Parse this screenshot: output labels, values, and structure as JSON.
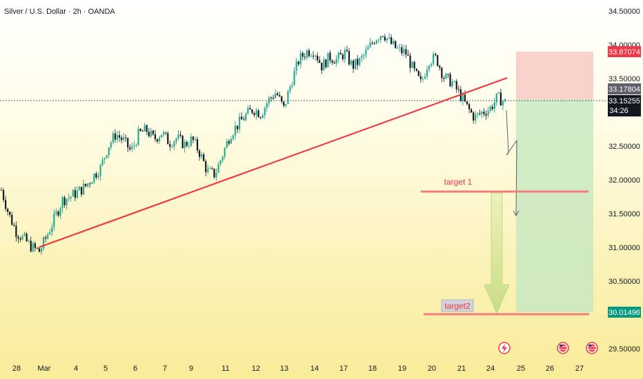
{
  "chart_data": {
    "type": "candlestick",
    "title": "Silver / U.S. Dollar · 2h · OANDA",
    "y_axis": {
      "ticks": [
        "34.50000",
        "34.00000",
        "33.50000",
        "33.00000",
        "32.50000",
        "32.00000",
        "31.50000",
        "31.00000",
        "30.50000",
        "30.00000",
        "29.50000"
      ],
      "range": [
        29.42,
        34.57
      ]
    },
    "x_axis": {
      "ticks": [
        "28",
        "Mar",
        "4",
        "5",
        "6",
        "7",
        "9",
        "11",
        "12",
        "13",
        "14",
        "17",
        "18",
        "19",
        "20",
        "21",
        "24",
        "25",
        "26",
        "27"
      ]
    },
    "price_tags": [
      {
        "value": "33.87074",
        "color": "#f23645"
      },
      {
        "value": "33.17804",
        "color": "#5d606b"
      },
      {
        "value": "33.15255",
        "color": "#131722"
      },
      {
        "value": "34:26",
        "color": "#131722"
      },
      {
        "value": "30.01496",
        "color": "#089981"
      }
    ],
    "current_price": 33.15255,
    "stop_level": 33.87074,
    "entry_level": 33.17804,
    "target_level": 30.01496,
    "annotations": [
      "target 1",
      "target2"
    ],
    "target1_level": 31.82,
    "target2_level": 30.0,
    "trendline": {
      "start": [
        "Feb 28",
        30.97
      ],
      "end": [
        "Mar 24",
        33.51
      ]
    },
    "price_path": [
      [
        0,
        31.85
      ],
      [
        1,
        31.48
      ],
      [
        2,
        31.22
      ],
      [
        3,
        31.12
      ],
      [
        4,
        31.0
      ],
      [
        5,
        30.94
      ],
      [
        6,
        31.18
      ],
      [
        7,
        31.44
      ],
      [
        8,
        31.7
      ],
      [
        9,
        31.75
      ],
      [
        10,
        31.82
      ],
      [
        11,
        31.9
      ],
      [
        12,
        32.05
      ],
      [
        13,
        32.18
      ],
      [
        14,
        32.5
      ],
      [
        15,
        32.68
      ],
      [
        16,
        32.58
      ],
      [
        17,
        32.42
      ],
      [
        18,
        32.68
      ],
      [
        19,
        32.74
      ],
      [
        20,
        32.6
      ],
      [
        21,
        32.7
      ],
      [
        22,
        32.55
      ],
      [
        23,
        32.62
      ],
      [
        24,
        32.52
      ],
      [
        25,
        32.6
      ],
      [
        26,
        32.4
      ],
      [
        27,
        32.12
      ],
      [
        28,
        32.08
      ],
      [
        29,
        32.38
      ],
      [
        30,
        32.68
      ],
      [
        31,
        32.82
      ],
      [
        32,
        32.95
      ],
      [
        33,
        33.05
      ],
      [
        34,
        32.98
      ],
      [
        35,
        33.18
      ],
      [
        36,
        33.3
      ],
      [
        37,
        33.05
      ],
      [
        38,
        33.45
      ],
      [
        39,
        33.78
      ],
      [
        40,
        33.9
      ],
      [
        41,
        33.92
      ],
      [
        42,
        33.68
      ],
      [
        43,
        33.82
      ],
      [
        44,
        33.78
      ],
      [
        45,
        33.88
      ],
      [
        46,
        33.68
      ],
      [
        47,
        33.76
      ],
      [
        48,
        33.92
      ],
      [
        49,
        34.1
      ],
      [
        50,
        34.18
      ],
      [
        51,
        34.02
      ],
      [
        52,
        33.92
      ],
      [
        53,
        33.88
      ],
      [
        54,
        33.62
      ],
      [
        55,
        33.42
      ],
      [
        56,
        33.78
      ],
      [
        57,
        33.8
      ],
      [
        58,
        33.52
      ],
      [
        59,
        33.45
      ],
      [
        60,
        33.28
      ],
      [
        61,
        33.08
      ],
      [
        62,
        32.92
      ],
      [
        63,
        33.0
      ],
      [
        64,
        33.05
      ],
      [
        65,
        33.22
      ],
      [
        66,
        33.15
      ]
    ],
    "price_path_units": "x = bar index, y = price",
    "grid": false
  }
}
